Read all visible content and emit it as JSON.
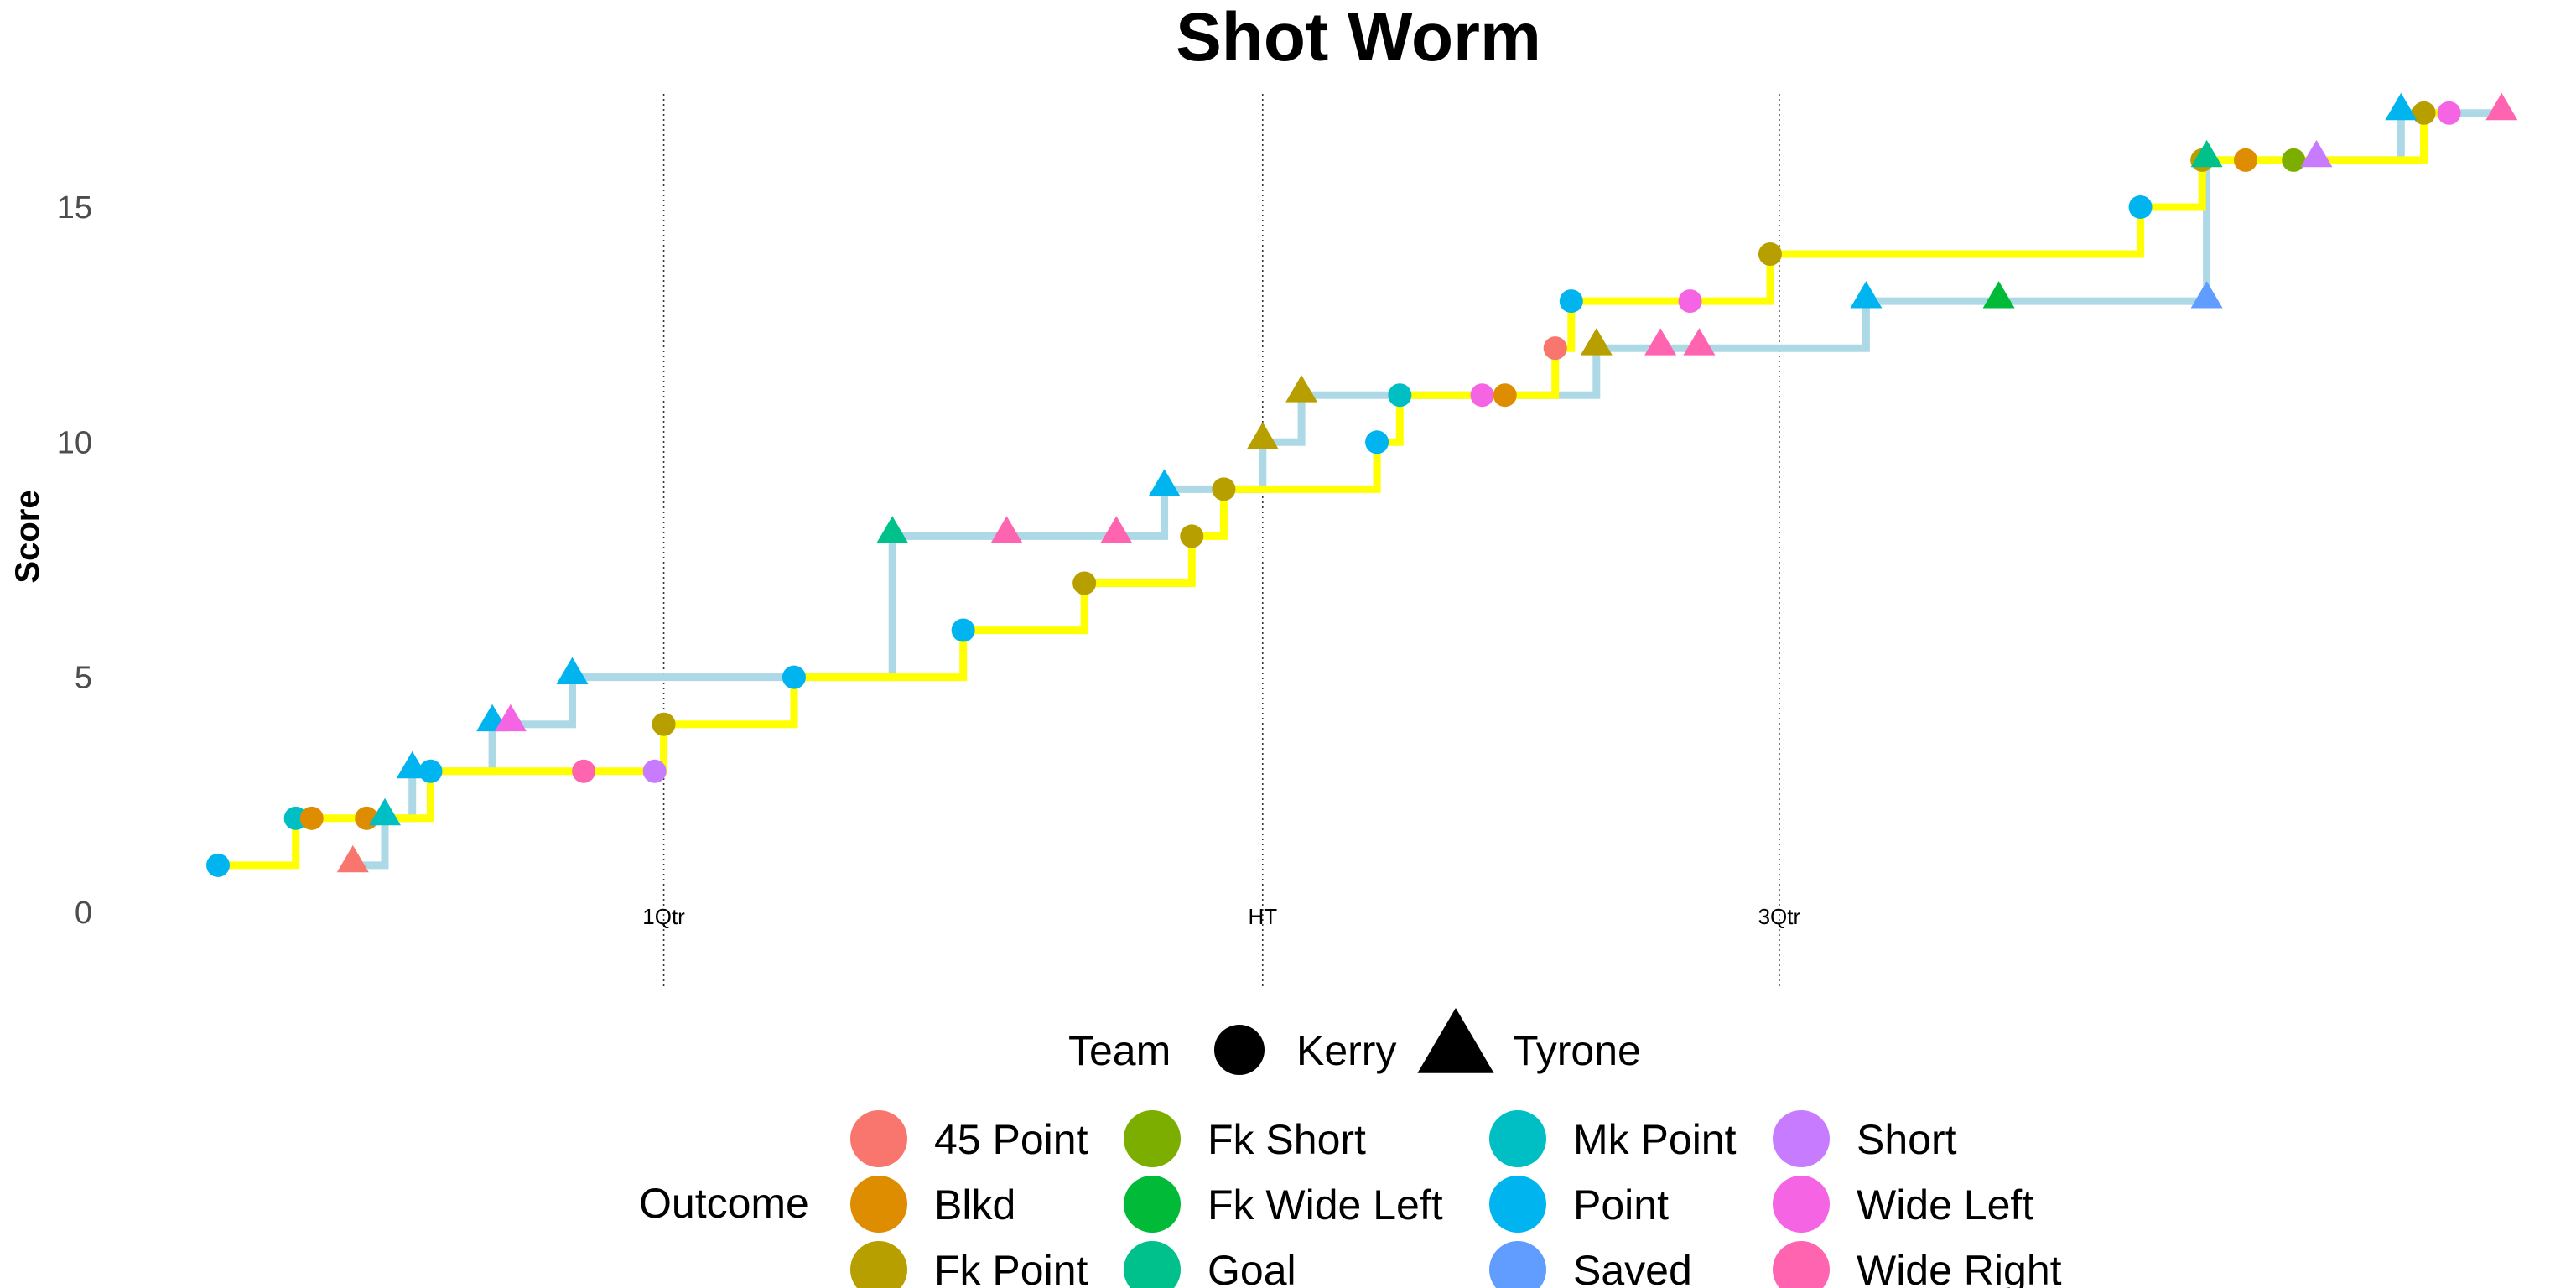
{
  "chart_data": {
    "type": "line",
    "title": "Shot Worm",
    "xlabel": "",
    "ylabel": "Score",
    "ylim": [
      -0.5,
      17.3
    ],
    "xlim": [
      0,
      100
    ],
    "yticks": [
      0,
      5,
      10,
      15
    ],
    "grid": false,
    "vlines": [
      {
        "x": 19.5,
        "label": "1Qtr"
      },
      {
        "x": 45.7,
        "label": "HT"
      },
      {
        "x": 68.3,
        "label": "3Qtr"
      }
    ],
    "series": [
      {
        "name": "Kerry",
        "color": "#ffff00",
        "marker": "circle",
        "points": [
          {
            "x": 0.0,
            "y": 1,
            "outcome": "Point"
          },
          {
            "x": 3.4,
            "y": 2,
            "outcome": "Mk Point"
          },
          {
            "x": 4.1,
            "y": 2,
            "outcome": "Blkd"
          },
          {
            "x": 6.5,
            "y": 2,
            "outcome": "Blkd"
          },
          {
            "x": 9.3,
            "y": 3,
            "outcome": "Point"
          },
          {
            "x": 16.0,
            "y": 3,
            "outcome": "Wide Right"
          },
          {
            "x": 19.1,
            "y": 3,
            "outcome": "Short"
          },
          {
            "x": 19.5,
            "y": 4,
            "outcome": "Fk Point"
          },
          {
            "x": 25.2,
            "y": 5,
            "outcome": "Point"
          },
          {
            "x": 32.6,
            "y": 6,
            "outcome": "Point"
          },
          {
            "x": 37.9,
            "y": 7,
            "outcome": "Fk Point"
          },
          {
            "x": 42.6,
            "y": 8,
            "outcome": "Fk Point"
          },
          {
            "x": 44.0,
            "y": 9,
            "outcome": "Fk Point"
          },
          {
            "x": 50.7,
            "y": 10,
            "outcome": "Point"
          },
          {
            "x": 51.7,
            "y": 11,
            "outcome": "Mk Point"
          },
          {
            "x": 55.3,
            "y": 11,
            "outcome": "Wide Left"
          },
          {
            "x": 56.3,
            "y": 11,
            "outcome": "Blkd"
          },
          {
            "x": 58.5,
            "y": 12,
            "outcome": "45 Point"
          },
          {
            "x": 59.2,
            "y": 13,
            "outcome": "Point"
          },
          {
            "x": 64.4,
            "y": 13,
            "outcome": "Wide Left"
          },
          {
            "x": 67.9,
            "y": 14,
            "outcome": "Fk Point"
          },
          {
            "x": 84.1,
            "y": 15,
            "outcome": "Point"
          },
          {
            "x": 86.8,
            "y": 16,
            "outcome": "Fk Point"
          },
          {
            "x": 88.7,
            "y": 16,
            "outcome": "Blkd"
          },
          {
            "x": 90.8,
            "y": 16,
            "outcome": "Fk Short"
          },
          {
            "x": 96.5,
            "y": 17,
            "outcome": "Fk Point"
          },
          {
            "x": 97.6,
            "y": 17,
            "outcome": "Wide Left"
          }
        ]
      },
      {
        "name": "Tyrone",
        "color": "#add8e6",
        "marker": "triangle",
        "points": [
          {
            "x": 5.9,
            "y": 1,
            "outcome": "45 Point"
          },
          {
            "x": 7.3,
            "y": 2,
            "outcome": "Mk Point"
          },
          {
            "x": 8.5,
            "y": 3,
            "outcome": "Point"
          },
          {
            "x": 12.0,
            "y": 4,
            "outcome": "Point"
          },
          {
            "x": 12.8,
            "y": 4,
            "outcome": "Wide Left"
          },
          {
            "x": 15.5,
            "y": 5,
            "outcome": "Point"
          },
          {
            "x": 29.5,
            "y": 8,
            "outcome": "Goal"
          },
          {
            "x": 34.5,
            "y": 8,
            "outcome": "Wide Right"
          },
          {
            "x": 39.3,
            "y": 8,
            "outcome": "Wide Right"
          },
          {
            "x": 41.4,
            "y": 9,
            "outcome": "Point"
          },
          {
            "x": 45.7,
            "y": 10,
            "outcome": "Fk Point"
          },
          {
            "x": 47.4,
            "y": 11,
            "outcome": "Fk Point"
          },
          {
            "x": 60.3,
            "y": 12,
            "outcome": "Fk Point"
          },
          {
            "x": 63.1,
            "y": 12,
            "outcome": "Wide Right"
          },
          {
            "x": 64.8,
            "y": 12,
            "outcome": "Wide Right"
          },
          {
            "x": 72.1,
            "y": 13,
            "outcome": "Point"
          },
          {
            "x": 77.9,
            "y": 13,
            "outcome": "Fk Wide Left"
          },
          {
            "x": 87.0,
            "y": 13,
            "outcome": "Saved"
          },
          {
            "x": 87.0,
            "y": 16,
            "outcome": "Goal"
          },
          {
            "x": 91.8,
            "y": 16,
            "outcome": "Short"
          },
          {
            "x": 95.5,
            "y": 17,
            "outcome": "Point"
          },
          {
            "x": 99.9,
            "y": 17,
            "outcome": "Wide Right"
          }
        ]
      }
    ],
    "legend": {
      "position": "bottom",
      "team_title": "Team",
      "teams": [
        {
          "label": "Kerry",
          "shape": "circle"
        },
        {
          "label": "Tyrone",
          "shape": "triangle"
        }
      ],
      "outcome_title": "Outcome",
      "outcomes": [
        {
          "label": "45 Point",
          "color": "#f8766d"
        },
        {
          "label": "Blkd",
          "color": "#de8c00"
        },
        {
          "label": "Fk Point",
          "color": "#b79f00"
        },
        {
          "label": "Fk Short",
          "color": "#7cae00"
        },
        {
          "label": "Fk Wide Left",
          "color": "#00ba38"
        },
        {
          "label": "Goal",
          "color": "#00c08b"
        },
        {
          "label": "Mk Point",
          "color": "#00bfc4"
        },
        {
          "label": "Point",
          "color": "#00b4f0"
        },
        {
          "label": "Saved",
          "color": "#619cff"
        },
        {
          "label": "Short",
          "color": "#c77cff"
        },
        {
          "label": "Wide Left",
          "color": "#f564e3"
        },
        {
          "label": "Wide Right",
          "color": "#ff64b0"
        }
      ]
    }
  }
}
